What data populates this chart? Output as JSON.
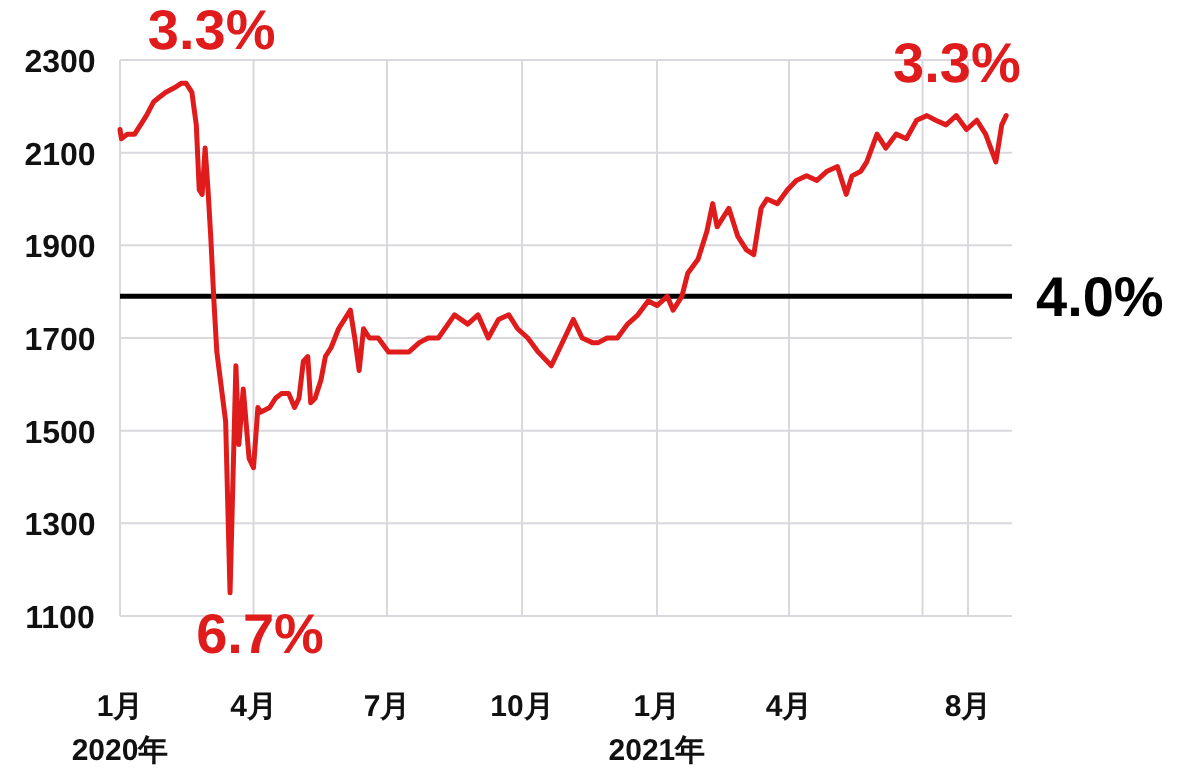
{
  "chart_data": {
    "type": "line",
    "x": [
      "2020-01-01",
      "2020-01-02",
      "2020-01-06",
      "2020-01-11",
      "2020-01-15",
      "2020-01-19",
      "2020-01-24",
      "2020-01-28",
      "2020-02-01",
      "2020-02-07",
      "2020-02-12",
      "2020-02-15",
      "2020-02-19",
      "2020-02-22",
      "2020-02-24",
      "2020-02-26",
      "2020-02-28",
      "2020-03-01",
      "2020-03-03",
      "2020-03-05",
      "2020-03-07",
      "2020-03-13",
      "2020-03-16",
      "2020-03-20",
      "2020-03-22",
      "2020-03-25",
      "2020-03-29",
      "2020-04-01",
      "2020-04-04",
      "2020-04-06",
      "2020-04-12",
      "2020-04-16",
      "2020-04-20",
      "2020-04-25",
      "2020-04-29",
      "2020-05-02",
      "2020-05-05",
      "2020-05-08",
      "2020-05-10",
      "2020-05-13",
      "2020-05-17",
      "2020-05-20",
      "2020-05-24",
      "2020-05-29",
      "2020-06-04",
      "2020-06-06",
      "2020-06-09",
      "2020-06-12",
      "2020-06-15",
      "2020-06-19",
      "2020-06-25",
      "2020-07-02",
      "2020-07-09",
      "2020-07-16",
      "2020-07-23",
      "2020-07-29",
      "2020-08-05",
      "2020-08-16",
      "2020-08-25",
      "2020-09-01",
      "2020-09-08",
      "2020-09-15",
      "2020-09-22",
      "2020-09-28",
      "2020-10-05",
      "2020-10-12",
      "2020-10-21",
      "2020-10-30",
      "2020-11-05",
      "2020-11-11",
      "2020-11-18",
      "2020-11-22",
      "2020-11-28",
      "2020-12-05",
      "2020-12-12",
      "2020-12-19",
      "2020-12-26",
      "2021-01-01",
      "2021-01-08",
      "2021-01-12",
      "2021-01-18",
      "2021-01-22",
      "2021-01-29",
      "2021-02-04",
      "2021-02-08",
      "2021-02-11",
      "2021-02-15",
      "2021-02-19",
      "2021-02-25",
      "2021-03-03",
      "2021-03-08",
      "2021-03-13",
      "2021-03-17",
      "2021-03-24",
      "2021-03-31",
      "2021-04-06",
      "2021-04-13",
      "2021-04-20",
      "2021-04-27",
      "2021-05-04",
      "2021-05-10",
      "2021-05-14",
      "2021-05-20",
      "2021-05-24",
      "2021-05-31",
      "2021-06-06",
      "2021-06-13",
      "2021-06-20",
      "2021-06-27",
      "2021-07-04",
      "2021-07-10",
      "2021-07-17",
      "2021-07-24",
      "2021-07-31",
      "2021-08-07",
      "2021-08-13",
      "2021-08-20",
      "2021-08-24",
      "2021-08-27"
    ],
    "series": [
      {
        "color": "#e01b1b",
        "values": [
          2150,
          2130,
          2140,
          2140,
          2160,
          2180,
          2210,
          2220,
          2230,
          2240,
          2250,
          2250,
          2230,
          2160,
          2020,
          2010,
          2110,
          2020,
          1910,
          1780,
          1670,
          1520,
          1150,
          1640,
          1470,
          1590,
          1440,
          1420,
          1550,
          1540,
          1550,
          1570,
          1580,
          1580,
          1550,
          1570,
          1650,
          1660,
          1560,
          1570,
          1610,
          1660,
          1680,
          1720,
          1750,
          1760,
          1700,
          1630,
          1720,
          1700,
          1700,
          1670,
          1670,
          1670,
          1690,
          1700,
          1700,
          1750,
          1730,
          1750,
          1700,
          1740,
          1750,
          1720,
          1700,
          1670,
          1640,
          1700,
          1740,
          1700,
          1690,
          1690,
          1700,
          1700,
          1730,
          1750,
          1780,
          1770,
          1790,
          1760,
          1790,
          1840,
          1870,
          1930,
          1990,
          1940,
          1960,
          1980,
          1920,
          1890,
          1880,
          1980,
          2000,
          1990,
          2020,
          2040,
          2050,
          2040,
          2060,
          2070,
          2010,
          2050,
          2060,
          2080,
          2140,
          2110,
          2140,
          2130,
          2170,
          2180,
          2170,
          2160,
          2180,
          2150,
          2170,
          2140,
          2080,
          2160,
          2180
        ]
      }
    ],
    "xlim": [
      "2020-01-01",
      "2021-08-31"
    ],
    "xticks": [
      {
        "value": "2020-01-01",
        "label": "1月\n2020年"
      },
      {
        "value": "2020-04-01",
        "label": "4月"
      },
      {
        "value": "2020-07-01",
        "label": "7月"
      },
      {
        "value": "2020-10-01",
        "label": "10月"
      },
      {
        "value": "2021-01-01",
        "label": "1月\n2021年"
      },
      {
        "value": "2021-04-01",
        "label": "4月"
      },
      {
        "value": "2021-07-01",
        "label": null
      },
      {
        "value": "2021-08-01",
        "label": "8月"
      }
    ],
    "ylim": [
      1100,
      2300
    ],
    "yticks": [
      1100,
      1300,
      1500,
      1700,
      1900,
      2100,
      2300
    ],
    "grid": true,
    "ref_lines": [
      {
        "axis": "y",
        "value": 1790,
        "color": "#000000"
      }
    ],
    "annotations": [
      {
        "text": "3.3%",
        "x": "2020-02-12",
        "y": 2250
      },
      {
        "text": "6.7%",
        "x": "2020-03-16",
        "y": 1150
      },
      {
        "text": "3.3%",
        "x": "2021-07-04",
        "y": 2180
      },
      {
        "text": "4.0%",
        "x": "2021-08-31",
        "y": 1790
      }
    ]
  }
}
